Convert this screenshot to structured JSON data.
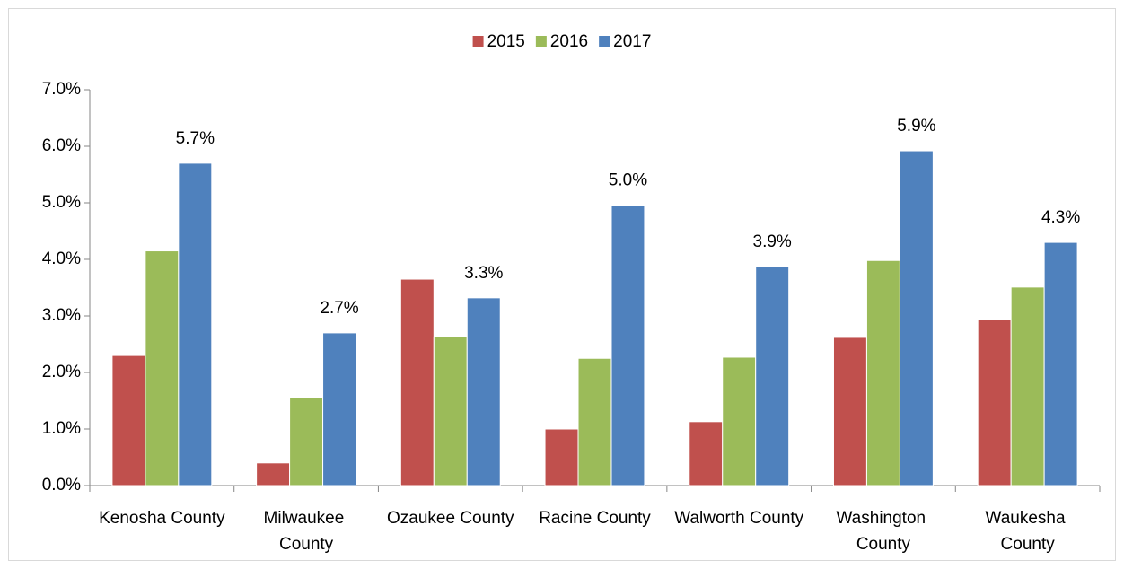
{
  "chart_data": {
    "type": "bar",
    "categories": [
      "Kenosha County",
      "Milwaukee County",
      "Ozaukee County",
      "Racine County",
      "Walworth County",
      "Washington County",
      "Waukesha County"
    ],
    "series": [
      {
        "name": "2015",
        "color": "#c0504d",
        "values": [
          2.3,
          0.4,
          3.65,
          1.0,
          1.13,
          2.62,
          2.94
        ]
      },
      {
        "name": "2016",
        "color": "#9bbb59",
        "values": [
          4.15,
          1.55,
          2.63,
          2.25,
          2.27,
          3.98,
          3.51
        ]
      },
      {
        "name": "2017",
        "color": "#4f81bd",
        "values": [
          5.7,
          2.7,
          3.32,
          4.96,
          3.87,
          5.92,
          4.3
        ],
        "value_labels": [
          "5.7%",
          "2.7%",
          "3.3%",
          "5.0%",
          "3.9%",
          "5.9%",
          "4.3%"
        ]
      }
    ],
    "ylim": [
      0,
      7
    ],
    "yticks": [
      {
        "value": 0,
        "label": "0.0%"
      },
      {
        "value": 1,
        "label": "1.0%"
      },
      {
        "value": 2,
        "label": "2.0%"
      },
      {
        "value": 3,
        "label": "3.0%"
      },
      {
        "value": 4,
        "label": "4.0%"
      },
      {
        "value": 5,
        "label": "5.0%"
      },
      {
        "value": 6,
        "label": "6.0%"
      },
      {
        "value": 7,
        "label": "7.0%"
      }
    ],
    "legend": "top",
    "grid": false
  }
}
